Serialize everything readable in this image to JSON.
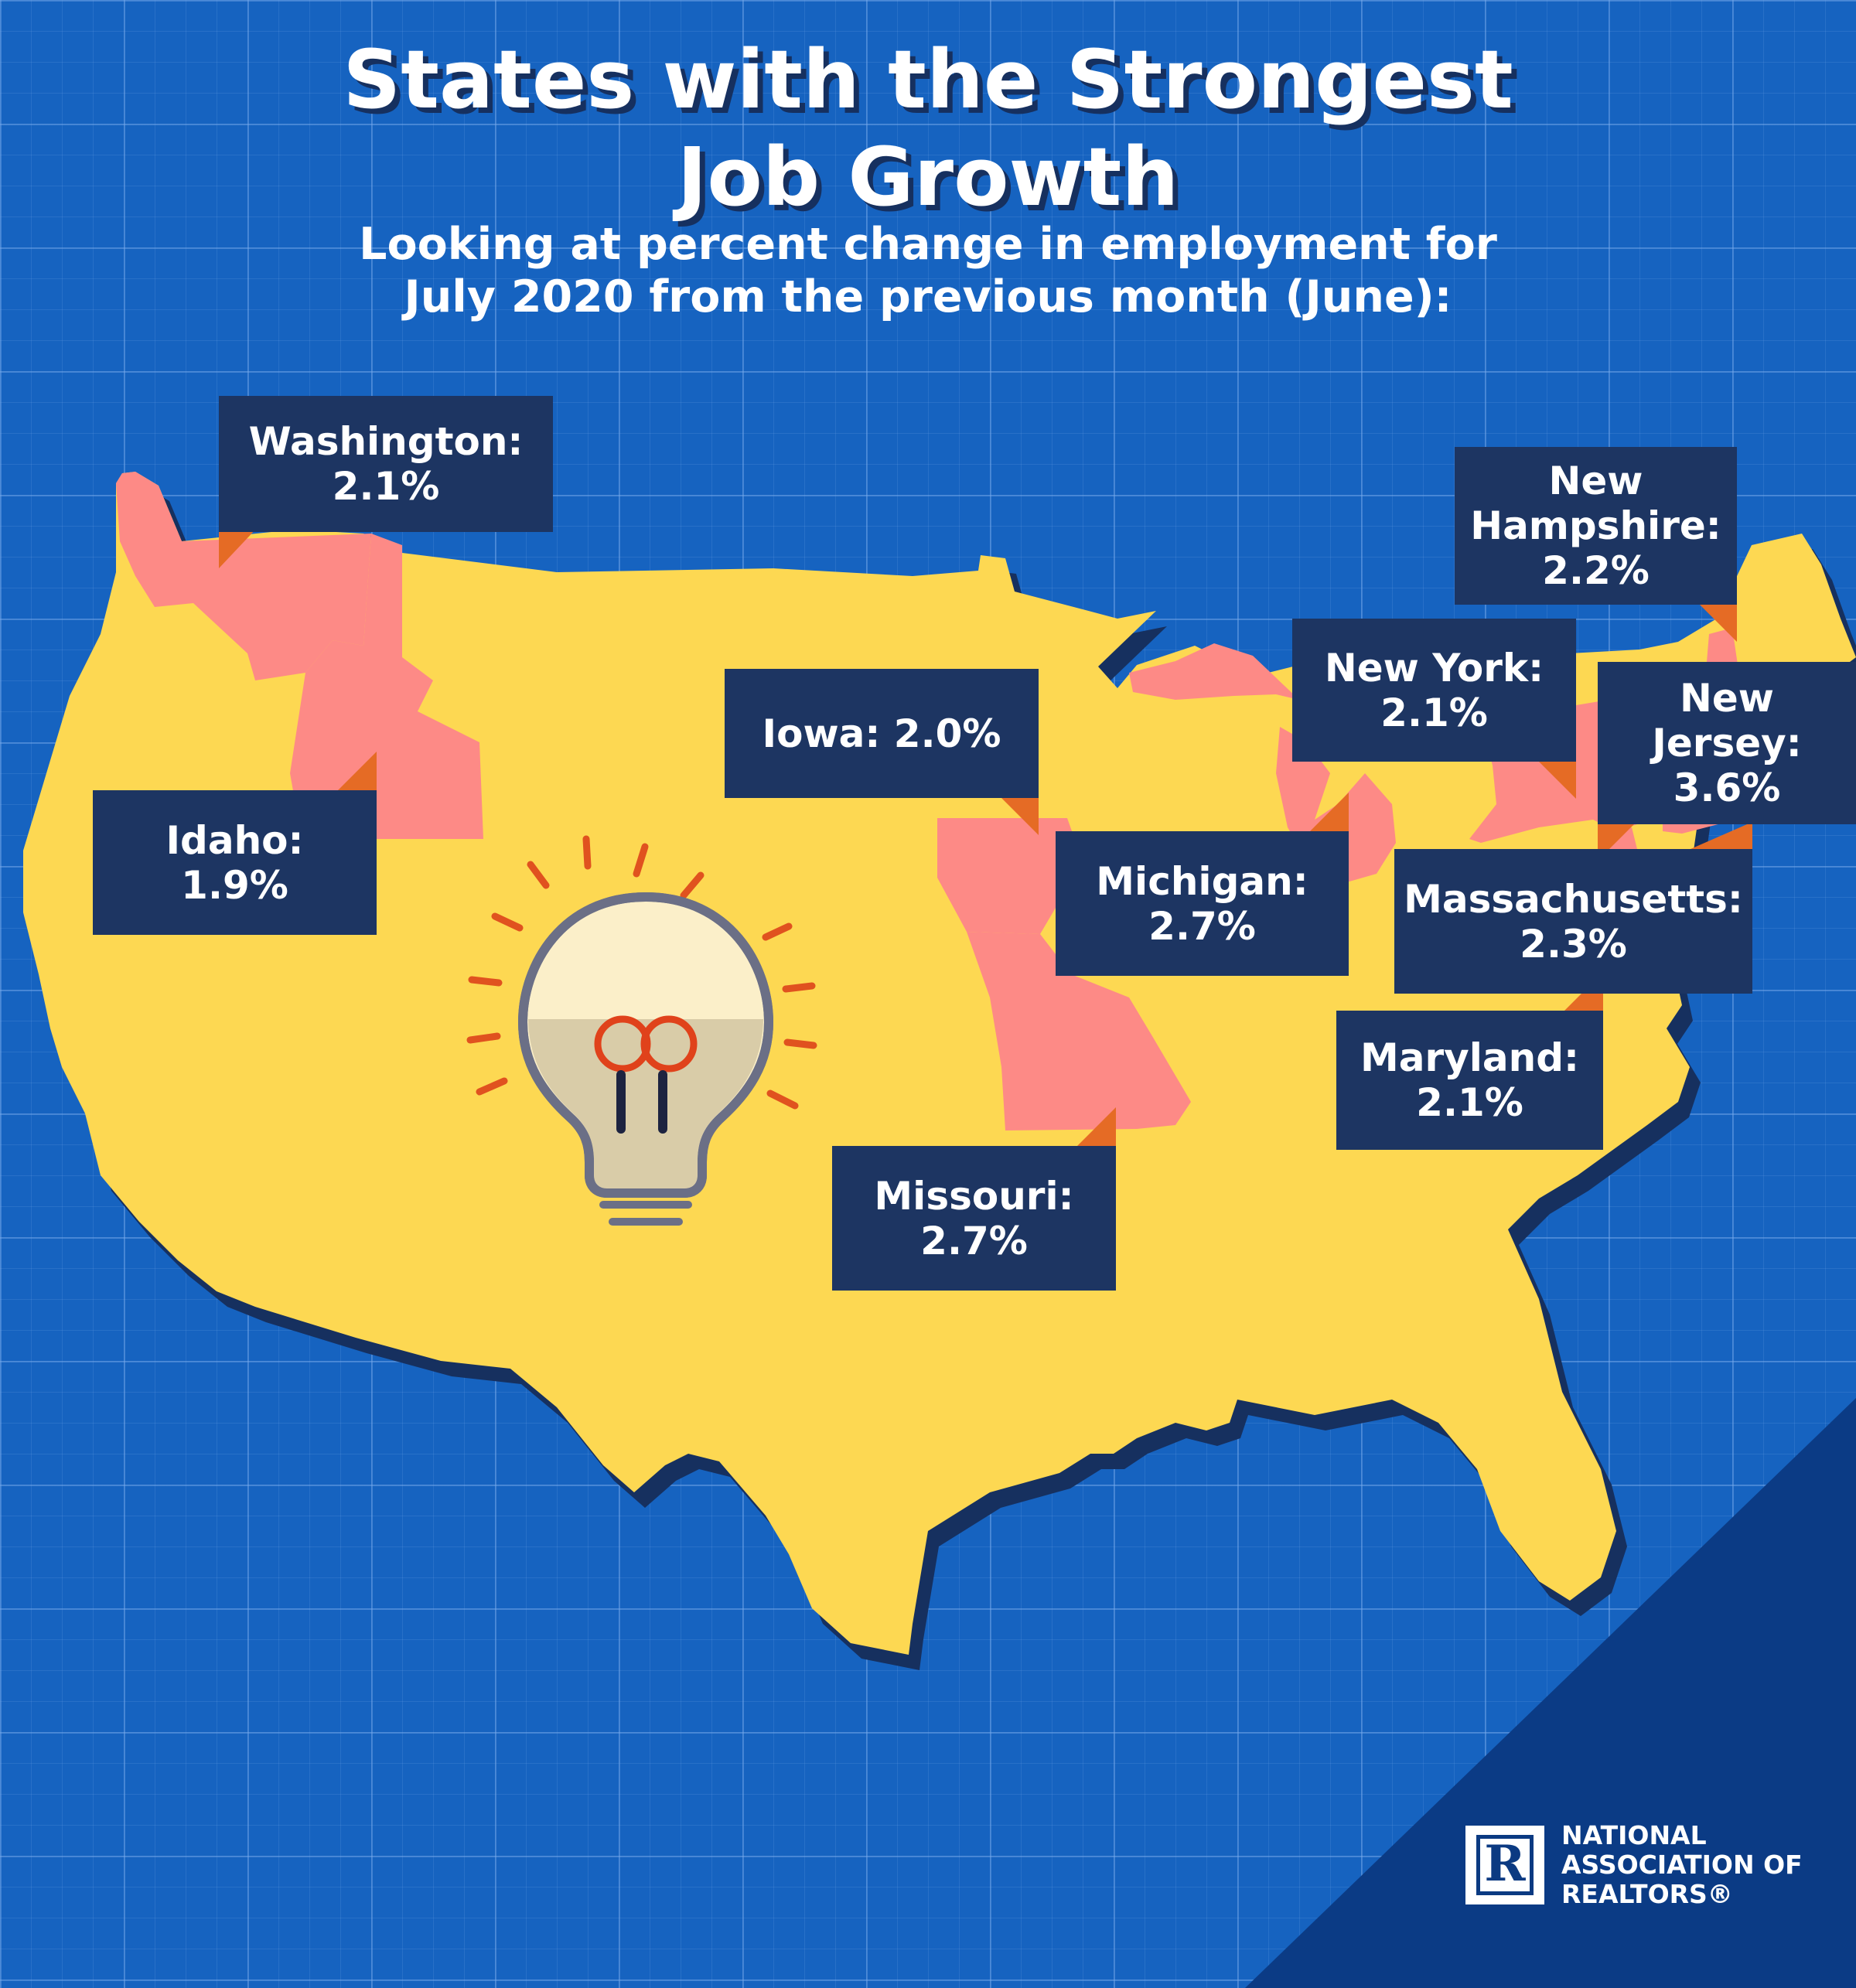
{
  "title": "States with the Strongest\nJob Growth",
  "subtitle": "Looking at percent change in employment for\nJuly 2020 from the previous month (June):",
  "colors": {
    "background": "#1663c0",
    "us_map": "#fdd852",
    "highlighted_state": "#fd8a86",
    "label_box": "#1d3562",
    "pointer": "#e56b25",
    "shadow": "#16305f"
  },
  "states": [
    {
      "name": "Washington",
      "change_pct": 2.1,
      "label": "Washington:\n2.1%"
    },
    {
      "name": "Idaho",
      "change_pct": 1.9,
      "label": "Idaho:\n1.9%"
    },
    {
      "name": "Iowa",
      "change_pct": 2.0,
      "label": "Iowa: 2.0%"
    },
    {
      "name": "Michigan",
      "change_pct": 2.7,
      "label": "Michigan:\n2.7%"
    },
    {
      "name": "Missouri",
      "change_pct": 2.7,
      "label": "Missouri:\n2.7%"
    },
    {
      "name": "New York",
      "change_pct": 2.1,
      "label": "New York:\n2.1%"
    },
    {
      "name": "New Hampshire",
      "change_pct": 2.2,
      "label": "New\nHampshire:\n2.2%"
    },
    {
      "name": "New Jersey",
      "change_pct": 3.6,
      "label": "New\nJersey:\n3.6%"
    },
    {
      "name": "Massachusetts",
      "change_pct": 2.3,
      "label": "Massachusetts:\n2.3%"
    },
    {
      "name": "Maryland",
      "change_pct": 2.1,
      "label": "Maryland:\n2.1%"
    }
  ],
  "logo": {
    "mark": "R",
    "text": "NATIONAL\nASSOCIATION OF\nREALTORS®"
  }
}
